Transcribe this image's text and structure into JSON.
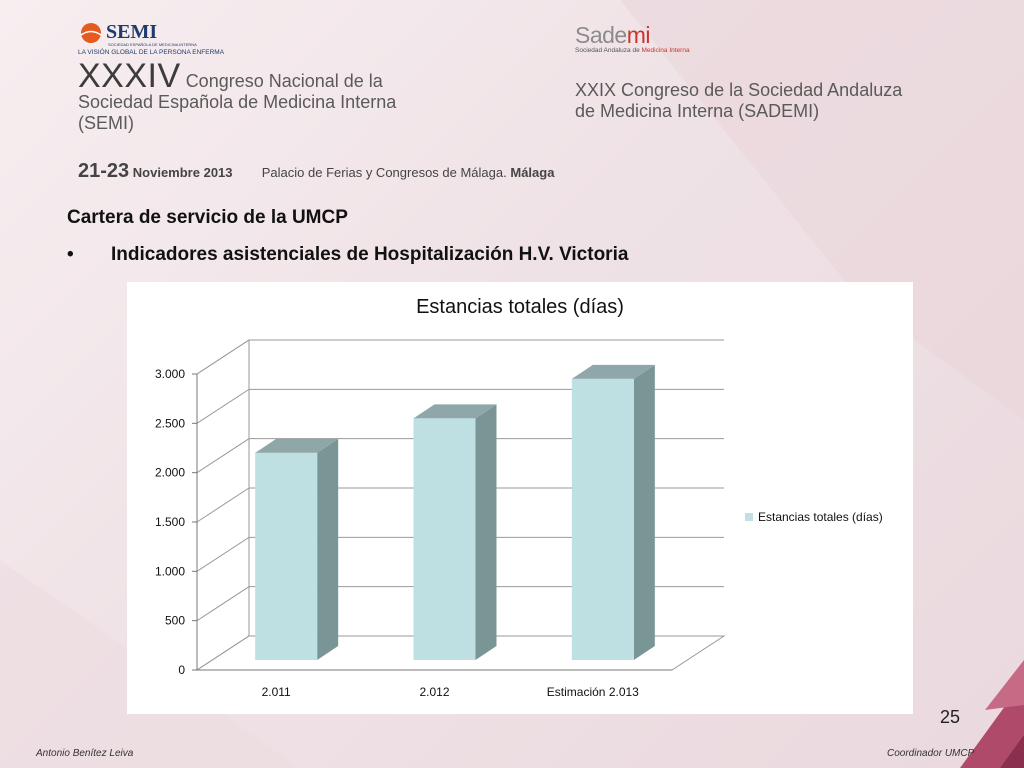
{
  "logos": {
    "semi": {
      "name": "SEMI",
      "tagline": "SOCIEDAD ESPAÑOLA DE MEDICINA INTERNA",
      "subtitle": "LA VISIÓN GLOBAL DE LA PERSONA ENFERMA"
    },
    "sademi": {
      "name_a": "Sade",
      "name_b": "mi",
      "subtitle_a": "Sociedad Andaluza de ",
      "subtitle_b": "Medicina Interna"
    }
  },
  "header": {
    "left_roman": "XXXIV",
    "left_line1": "Congreso Nacional de la",
    "left_line2": "Sociedad Española de Medicina Interna",
    "left_line3": "(SEMI)",
    "right_line1": "XXIX Congreso de la Sociedad Andaluza",
    "right_line2": "de Medicina Interna (SADEMI)",
    "dates": "21-23",
    "month": "Noviembre 2013",
    "venue": "Palacio de Ferias y Congresos de Málaga.",
    "city": "Málaga"
  },
  "slide": {
    "title": "Cartera de servicio de la UMCP",
    "bullet_mark": "•",
    "bullet_text": "Indicadores asistenciales de Hospitalización H.V. Victoria",
    "page_number": "25"
  },
  "footer": {
    "left": "Antonio Benítez Leiva",
    "right": "Coordinador UMCP"
  },
  "colors": {
    "bar_front": "#bfe0e2",
    "bar_top": "#8fa7a8",
    "bar_side": "#7a9596"
  },
  "chart_data": {
    "type": "bar",
    "title": "Estancias totales (días)",
    "categories": [
      "2.011",
      "2.012",
      "Estimación 2.013"
    ],
    "series": [
      {
        "name": "Estancias totales (días)",
        "values": [
          2200,
          2550,
          2950
        ]
      }
    ],
    "ylim": [
      0,
      3000
    ],
    "yticks": [
      0,
      500,
      1000,
      1500,
      2000,
      2500,
      3000
    ],
    "ytick_labels": [
      "0",
      "500",
      "1.000",
      "1.500",
      "2.000",
      "2.500",
      "3.000"
    ],
    "grid": true,
    "legend": "right",
    "style": "3d-column"
  }
}
